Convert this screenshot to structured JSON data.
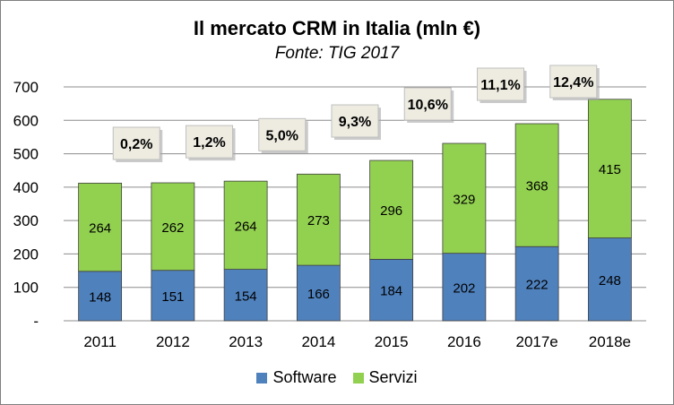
{
  "chart_data": {
    "type": "bar",
    "stacked": true,
    "title": "Il mercato CRM in Italia (mln €)",
    "subtitle": "Fonte: TIG 2017",
    "categories": [
      "2011",
      "2012",
      "2013",
      "2014",
      "2015",
      "2016",
      "2017e",
      "2018e"
    ],
    "series": [
      {
        "name": "Software",
        "color": "#4f81bd",
        "values": [
          148,
          151,
          154,
          166,
          184,
          202,
          222,
          248
        ]
      },
      {
        "name": "Servizi",
        "color": "#92d050",
        "values": [
          264,
          262,
          264,
          273,
          296,
          329,
          368,
          415
        ]
      }
    ],
    "annotations": [
      "0,2%",
      "1,2%",
      "5,0%",
      "9,3%",
      "10,6%",
      "11,1%",
      "12,4%"
    ],
    "ylim": [
      0,
      700
    ],
    "yticks": [
      "-",
      "100",
      "200",
      "300",
      "400",
      "500",
      "600",
      "700"
    ],
    "grid": true,
    "legend_position": "bottom"
  }
}
